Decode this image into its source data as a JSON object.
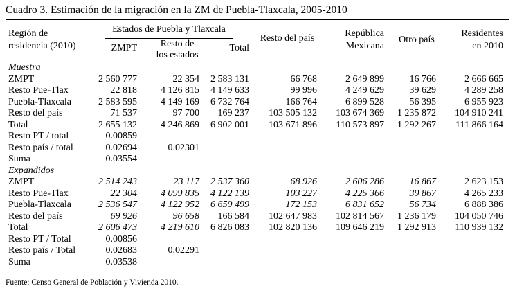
{
  "caption": "Cuadro 3. Estimación de la migración en la ZM de Puebla-Tlaxcala, 2005-2010",
  "headers": {
    "region": [
      "Región de",
      "residencia (2010)"
    ],
    "group": "Estados de Puebla y Tlaxcala",
    "zmpt": "ZMPT",
    "resto_estados": [
      "Resto de",
      "los estados"
    ],
    "total": "Total",
    "resto_pais": "Resto del país",
    "republica": [
      "República",
      "Mexicana"
    ],
    "otro_pais": "Otro país",
    "residentes": [
      "Residentes",
      "en 2010"
    ]
  },
  "rows": [
    {
      "type": "section",
      "label": "Muestra"
    },
    {
      "type": "data",
      "label": "ZMPT",
      "v": [
        "2 560 777",
        "22 354",
        "2 583 131",
        "66 768",
        "2 649 899",
        "16 766",
        "2 666 665"
      ]
    },
    {
      "type": "data",
      "label": "Resto Pue-Tlax",
      "v": [
        "22 818",
        "4 126 815",
        "4 149 633",
        "99 996",
        "4 249 629",
        "39 629",
        "4 289 258"
      ]
    },
    {
      "type": "data",
      "label": "Puebla-Tlaxcala",
      "v": [
        "2 583 595",
        "4 149 169",
        "6 732 764",
        "166 764",
        "6 899 528",
        "56 395",
        "6 955 923"
      ]
    },
    {
      "type": "data",
      "label": "Resto del país",
      "v": [
        "71 537",
        "97 700",
        "169 237",
        "103 505 132",
        "103 674 369",
        "1 235 872",
        "104 910 241"
      ]
    },
    {
      "type": "data",
      "label": "Total",
      "v": [
        "2 655 132",
        "4 246 869",
        "6 902 001",
        "103 671 896",
        "110 573 897",
        "1 292 267",
        "111 866 164"
      ]
    },
    {
      "type": "data",
      "label": "Resto PT / total",
      "v": [
        "0.00859",
        "",
        "",
        "",
        "",
        "",
        ""
      ]
    },
    {
      "type": "data",
      "label": "Resto país / total",
      "v": [
        "0.02694",
        "0.02301",
        "",
        "",
        "",
        "",
        ""
      ]
    },
    {
      "type": "data",
      "label": "Suma",
      "v": [
        "0.03554",
        "",
        "",
        "",
        "",
        "",
        ""
      ]
    },
    {
      "type": "section",
      "label": "Expandidos"
    },
    {
      "type": "data",
      "label": "ZMPT",
      "v": [
        "2 514 243",
        "23 117",
        "2 537 360",
        "68 926",
        "2 606 286",
        "16 867",
        "2 623 153"
      ],
      "ital": [
        true,
        true,
        true,
        true,
        true,
        true,
        false
      ]
    },
    {
      "type": "data",
      "label": "Resto Pue-Tlax",
      "v": [
        "22 304",
        "4 099 835",
        "4 122 139",
        "103 227",
        "4 225 366",
        "39 867",
        "4 265 233"
      ],
      "ital": [
        true,
        true,
        true,
        true,
        true,
        true,
        false
      ]
    },
    {
      "type": "data",
      "label": "Puebla-Tlaxcala",
      "v": [
        "2 536 547",
        "4 122 952",
        "6 659 499",
        "172 153",
        "6 831 652",
        "56 734",
        "6 888 386"
      ],
      "ital": [
        true,
        true,
        true,
        true,
        true,
        true,
        false
      ]
    },
    {
      "type": "data",
      "label": "Resto del país",
      "v": [
        "69 926",
        "96 658",
        "166 584",
        "102 647 983",
        "102 814 567",
        "1 236 179",
        "104 050 746"
      ],
      "ital": [
        true,
        true,
        false,
        false,
        false,
        false,
        false
      ]
    },
    {
      "type": "data",
      "label": "Total",
      "v": [
        "2 606 473",
        "4 219 610",
        "6 826 083",
        "102 820 136",
        "109 646 219",
        "1 292 913",
        "110 939 132"
      ],
      "ital": [
        true,
        true,
        false,
        false,
        false,
        false,
        false
      ]
    },
    {
      "type": "data",
      "label": "Resto PT / Total",
      "v": [
        "0.00856",
        "",
        "",
        "",
        "",
        "",
        ""
      ]
    },
    {
      "type": "data",
      "label": "Resto país / Total",
      "v": [
        "0.02683",
        "0.02291",
        "",
        "",
        "",
        "",
        ""
      ]
    },
    {
      "type": "data",
      "label": "Suma",
      "v": [
        "0.03538",
        "",
        "",
        "",
        "",
        "",
        ""
      ]
    }
  ],
  "source": "Fuente: Censo General de Población y Vivienda 2010."
}
